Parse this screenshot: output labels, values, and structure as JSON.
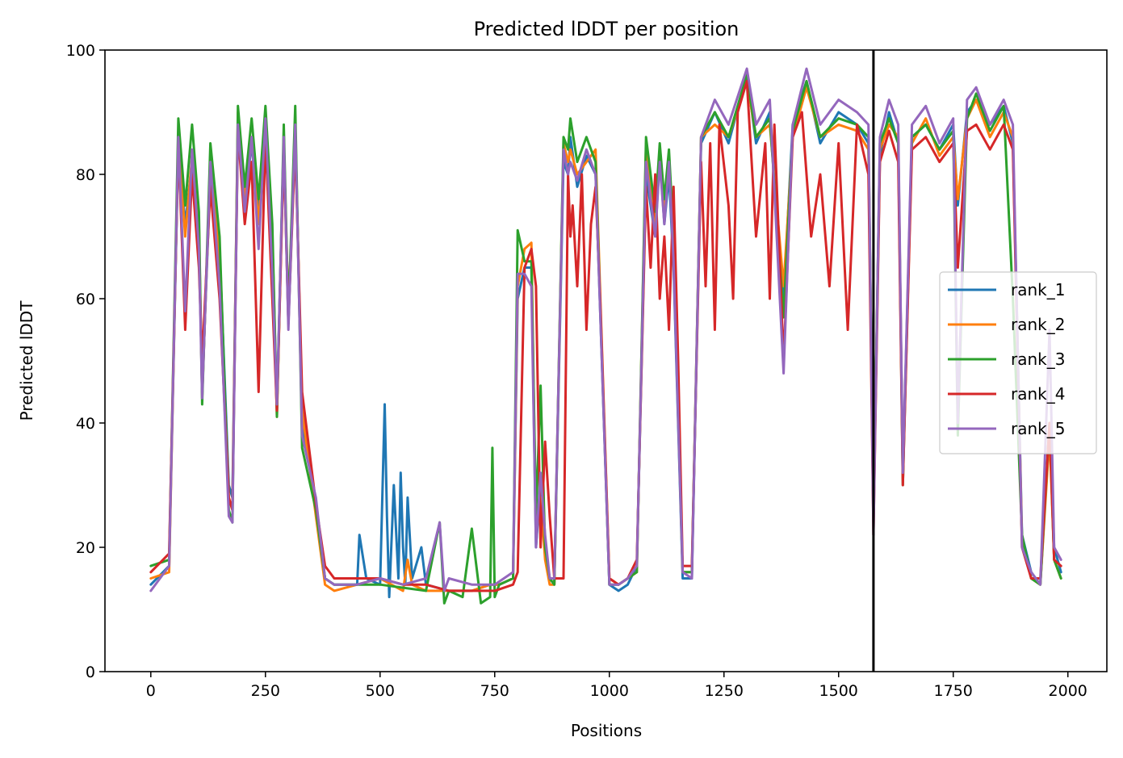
{
  "chart_data": {
    "type": "line",
    "title": "Predicted lDDT per position",
    "xlabel": "Positions",
    "ylabel": "Predicted lDDT",
    "xlim": [
      -100,
      2085
    ],
    "ylim": [
      0,
      100
    ],
    "xticks": [
      0,
      250,
      500,
      750,
      1000,
      1250,
      1500,
      1750,
      2000
    ],
    "yticks": [
      0,
      20,
      40,
      60,
      80,
      100
    ],
    "grid": false,
    "legend_position": "center-right",
    "vline_x": 1576,
    "vline_color": "#000000",
    "series": [
      {
        "name": "rank_1",
        "color": "#1f77b4",
        "x": [
          0,
          40,
          60,
          75,
          90,
          105,
          112,
          130,
          150,
          170,
          178,
          190,
          205,
          220,
          235,
          250,
          265,
          275,
          290,
          300,
          315,
          330,
          360,
          380,
          400,
          450,
          455,
          470,
          500,
          510,
          515,
          520,
          530,
          540,
          545,
          550,
          555,
          560,
          570,
          590,
          600,
          650,
          700,
          740,
          760,
          790,
          800,
          815,
          830,
          840,
          850,
          860,
          870,
          880,
          900,
          910,
          915,
          930,
          950,
          970,
          1000,
          1020,
          1040,
          1060,
          1080,
          1100,
          1110,
          1120,
          1130,
          1140,
          1160,
          1180,
          1200,
          1230,
          1260,
          1300,
          1320,
          1350,
          1380,
          1400,
          1430,
          1460,
          1500,
          1540,
          1565,
          1576,
          1590,
          1610,
          1630,
          1640,
          1660,
          1690,
          1720,
          1750,
          1760,
          1780,
          1800,
          1830,
          1860,
          1880,
          1900,
          1920,
          1940,
          1960,
          1970,
          1985
        ],
        "values": [
          14,
          17,
          85,
          72,
          82,
          70,
          45,
          80,
          68,
          30,
          28,
          88,
          75,
          85,
          74,
          88,
          70,
          42,
          86,
          56,
          88,
          40,
          27,
          15,
          14,
          14,
          22,
          15,
          14,
          43,
          25,
          12,
          30,
          15,
          32,
          20,
          14,
          28,
          15,
          20,
          14,
          13,
          13,
          14,
          14,
          15,
          60,
          65,
          65,
          20,
          30,
          20,
          15,
          14,
          82,
          80,
          86,
          78,
          83,
          80,
          14,
          13,
          14,
          17,
          80,
          70,
          83,
          72,
          80,
          65,
          15,
          15,
          85,
          90,
          85,
          96,
          85,
          90,
          60,
          88,
          95,
          85,
          90,
          88,
          85,
          25,
          83,
          90,
          85,
          32,
          86,
          88,
          84,
          88,
          75,
          90,
          92,
          88,
          91,
          85,
          22,
          16,
          14,
          40,
          20,
          16
        ]
      },
      {
        "name": "rank_2",
        "color": "#ff7f0e",
        "x": [
          0,
          40,
          60,
          75,
          90,
          105,
          112,
          130,
          150,
          170,
          178,
          190,
          205,
          220,
          235,
          250,
          265,
          275,
          290,
          300,
          315,
          330,
          360,
          380,
          400,
          450,
          500,
          550,
          560,
          570,
          600,
          650,
          700,
          740,
          760,
          790,
          800,
          815,
          830,
          840,
          850,
          860,
          870,
          880,
          900,
          910,
          915,
          930,
          950,
          970,
          1000,
          1020,
          1040,
          1060,
          1080,
          1100,
          1110,
          1120,
          1130,
          1140,
          1160,
          1180,
          1200,
          1230,
          1260,
          1300,
          1320,
          1350,
          1380,
          1400,
          1430,
          1460,
          1500,
          1540,
          1565,
          1576,
          1590,
          1610,
          1630,
          1640,
          1660,
          1690,
          1720,
          1750,
          1760,
          1780,
          1800,
          1830,
          1860,
          1880,
          1900,
          1920,
          1940,
          1960,
          1970,
          1985
        ],
        "values": [
          15,
          16,
          86,
          70,
          83,
          72,
          44,
          82,
          66,
          28,
          26,
          90,
          76,
          86,
          72,
          89,
          68,
          41,
          85,
          58,
          86,
          42,
          25,
          14,
          13,
          14,
          15,
          13,
          18,
          14,
          13,
          13,
          13,
          14,
          14,
          15,
          62,
          68,
          69,
          22,
          28,
          18,
          14,
          14,
          85,
          82,
          84,
          80,
          82,
          84,
          15,
          14,
          15,
          16,
          85,
          72,
          84,
          74,
          82,
          68,
          16,
          16,
          86,
          88,
          86,
          95,
          86,
          88,
          62,
          86,
          94,
          86,
          88,
          87,
          84,
          24,
          84,
          88,
          86,
          31,
          85,
          89,
          83,
          86,
          76,
          89,
          92,
          86,
          90,
          86,
          21,
          15,
          14,
          38,
          18,
          15
        ]
      },
      {
        "name": "rank_3",
        "color": "#2ca02c",
        "x": [
          0,
          40,
          60,
          75,
          90,
          105,
          112,
          130,
          150,
          170,
          178,
          190,
          205,
          220,
          235,
          250,
          265,
          275,
          290,
          300,
          315,
          330,
          360,
          380,
          400,
          450,
          500,
          600,
          630,
          640,
          650,
          680,
          700,
          720,
          740,
          745,
          750,
          760,
          790,
          800,
          815,
          830,
          840,
          850,
          860,
          870,
          880,
          900,
          910,
          915,
          930,
          950,
          970,
          1000,
          1020,
          1040,
          1060,
          1080,
          1100,
          1110,
          1120,
          1130,
          1140,
          1160,
          1180,
          1200,
          1230,
          1260,
          1300,
          1320,
          1350,
          1380,
          1400,
          1430,
          1460,
          1500,
          1540,
          1565,
          1576,
          1590,
          1610,
          1630,
          1640,
          1660,
          1690,
          1720,
          1750,
          1760,
          1780,
          1800,
          1830,
          1860,
          1880,
          1900,
          1920,
          1940,
          1960,
          1970,
          1985
        ],
        "values": [
          17,
          18,
          89,
          75,
          88,
          74,
          43,
          85,
          70,
          26,
          24,
          91,
          78,
          89,
          76,
          91,
          72,
          41,
          88,
          57,
          91,
          36,
          26,
          15,
          14,
          14,
          14,
          13,
          24,
          11,
          13,
          12,
          23,
          11,
          12,
          36,
          12,
          14,
          15,
          71,
          66,
          66,
          25,
          46,
          20,
          15,
          14,
          86,
          84,
          89,
          82,
          86,
          82,
          14,
          14,
          15,
          16,
          86,
          74,
          85,
          76,
          84,
          70,
          16,
          16,
          86,
          90,
          86,
          96,
          86,
          89,
          57,
          87,
          95,
          86,
          89,
          88,
          86,
          25,
          85,
          89,
          85,
          30,
          86,
          88,
          84,
          87,
          38,
          89,
          93,
          87,
          91,
          60,
          22,
          15,
          14,
          40,
          18,
          15
        ]
      },
      {
        "name": "rank_4",
        "color": "#d62728",
        "x": [
          0,
          40,
          60,
          75,
          90,
          105,
          112,
          130,
          150,
          170,
          178,
          190,
          205,
          220,
          235,
          250,
          265,
          275,
          290,
          300,
          315,
          330,
          360,
          380,
          400,
          450,
          500,
          550,
          600,
          650,
          700,
          750,
          790,
          800,
          815,
          830,
          840,
          850,
          860,
          870,
          880,
          900,
          910,
          915,
          920,
          930,
          940,
          950,
          960,
          970,
          980,
          1000,
          1020,
          1040,
          1060,
          1080,
          1090,
          1100,
          1110,
          1120,
          1130,
          1140,
          1150,
          1160,
          1180,
          1200,
          1210,
          1220,
          1230,
          1240,
          1260,
          1270,
          1280,
          1300,
          1320,
          1340,
          1350,
          1360,
          1380,
          1400,
          1420,
          1440,
          1460,
          1480,
          1500,
          1520,
          1540,
          1565,
          1576,
          1590,
          1610,
          1630,
          1640,
          1660,
          1690,
          1720,
          1750,
          1760,
          1780,
          1800,
          1830,
          1860,
          1880,
          1900,
          1920,
          1940,
          1960,
          1970,
          1985
        ],
        "values": [
          16,
          19,
          85,
          55,
          80,
          65,
          50,
          78,
          60,
          28,
          26,
          87,
          72,
          82,
          45,
          86,
          60,
          42,
          84,
          56,
          85,
          45,
          27,
          17,
          15,
          15,
          15,
          14,
          14,
          13,
          13,
          13,
          14,
          16,
          65,
          68,
          62,
          20,
          37,
          25,
          15,
          15,
          80,
          70,
          75,
          62,
          80,
          55,
          72,
          78,
          60,
          15,
          14,
          15,
          18,
          78,
          65,
          80,
          60,
          70,
          55,
          78,
          50,
          17,
          17,
          82,
          62,
          85,
          55,
          88,
          75,
          60,
          90,
          95,
          70,
          85,
          60,
          88,
          50,
          86,
          90,
          70,
          80,
          62,
          85,
          55,
          88,
          80,
          22,
          82,
          87,
          82,
          30,
          84,
          86,
          82,
          85,
          65,
          87,
          88,
          84,
          88,
          84,
          20,
          15,
          15,
          40,
          18,
          17
        ]
      },
      {
        "name": "rank_5",
        "color": "#9467bd",
        "x": [
          0,
          40,
          60,
          75,
          90,
          105,
          112,
          130,
          150,
          170,
          178,
          190,
          205,
          220,
          235,
          250,
          265,
          275,
          290,
          300,
          315,
          330,
          360,
          380,
          400,
          450,
          500,
          550,
          600,
          630,
          640,
          650,
          700,
          750,
          790,
          800,
          815,
          830,
          840,
          850,
          860,
          870,
          880,
          900,
          910,
          915,
          930,
          950,
          970,
          1000,
          1020,
          1040,
          1060,
          1080,
          1100,
          1110,
          1120,
          1130,
          1140,
          1160,
          1180,
          1200,
          1230,
          1260,
          1300,
          1320,
          1350,
          1380,
          1400,
          1430,
          1460,
          1500,
          1540,
          1565,
          1576,
          1590,
          1610,
          1630,
          1640,
          1660,
          1690,
          1720,
          1750,
          1760,
          1780,
          1800,
          1830,
          1860,
          1880,
          1900,
          1920,
          1940,
          1960,
          1970,
          1985
        ],
        "values": [
          13,
          17,
          86,
          58,
          84,
          68,
          44,
          82,
          62,
          25,
          24,
          88,
          74,
          86,
          68,
          89,
          64,
          43,
          86,
          55,
          88,
          38,
          28,
          15,
          14,
          14,
          15,
          14,
          15,
          24,
          13,
          15,
          14,
          14,
          16,
          64,
          64,
          62,
          20,
          32,
          22,
          15,
          15,
          84,
          80,
          82,
          79,
          84,
          80,
          14,
          14,
          15,
          17,
          82,
          70,
          82,
          72,
          82,
          66,
          16,
          15,
          86,
          92,
          88,
          97,
          88,
          92,
          48,
          88,
          97,
          88,
          92,
          90,
          88,
          22,
          86,
          92,
          88,
          32,
          88,
          91,
          85,
          89,
          40,
          92,
          94,
          88,
          92,
          88,
          20,
          16,
          14,
          55,
          20,
          18
        ]
      }
    ]
  }
}
